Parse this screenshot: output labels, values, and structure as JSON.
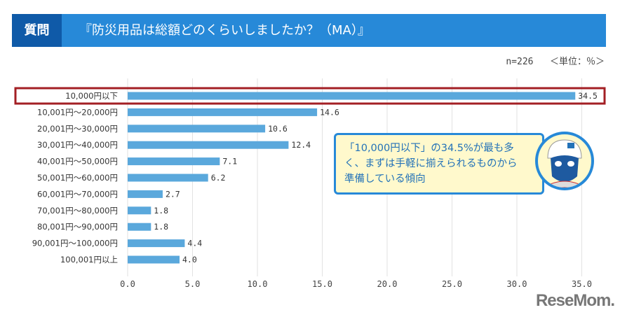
{
  "header": {
    "badge": "質問",
    "title": "『防災用品は総額どのくらいしましたか？（MA）』"
  },
  "meta": {
    "sample": "n=226",
    "unit": "＜単位：％＞"
  },
  "colors": {
    "bar": "#5aa8dc",
    "highlight": "#a31f24",
    "header": "#2789d8"
  },
  "callout": {
    "text": "「10,000円以下」の34.5%が最も多く、まずは手軽に揃えられるものから準備している傾向"
  },
  "logo": "ReseMom",
  "chart_data": {
    "type": "bar",
    "orientation": "horizontal",
    "categories": [
      "10,000円以下",
      "10,001円～20,000円",
      "20,001円～30,000円",
      "30,001円～40,000円",
      "40,001円～50,000円",
      "50,001円～60,000円",
      "60,001円～70,000円",
      "70,001円～80,000円",
      "80,001円～90,000円",
      "90,001円～100,000円",
      "100,001円以上"
    ],
    "values": [
      34.5,
      14.6,
      10.6,
      12.4,
      7.1,
      6.2,
      2.7,
      1.8,
      1.8,
      4.4,
      4.0
    ],
    "value_labels": [
      "34.5",
      "14.6",
      "10.6",
      "12.4",
      "7.1",
      "6.2",
      "2.7",
      "1.8",
      "1.8",
      "4.4",
      "4.0"
    ],
    "xlim": [
      0,
      35
    ],
    "ticks": [
      "0.0",
      "5.0",
      "10.0",
      "15.0",
      "20.0",
      "25.0",
      "30.0",
      "35.0"
    ],
    "grid": true,
    "highlighted": "10,000円以下"
  }
}
